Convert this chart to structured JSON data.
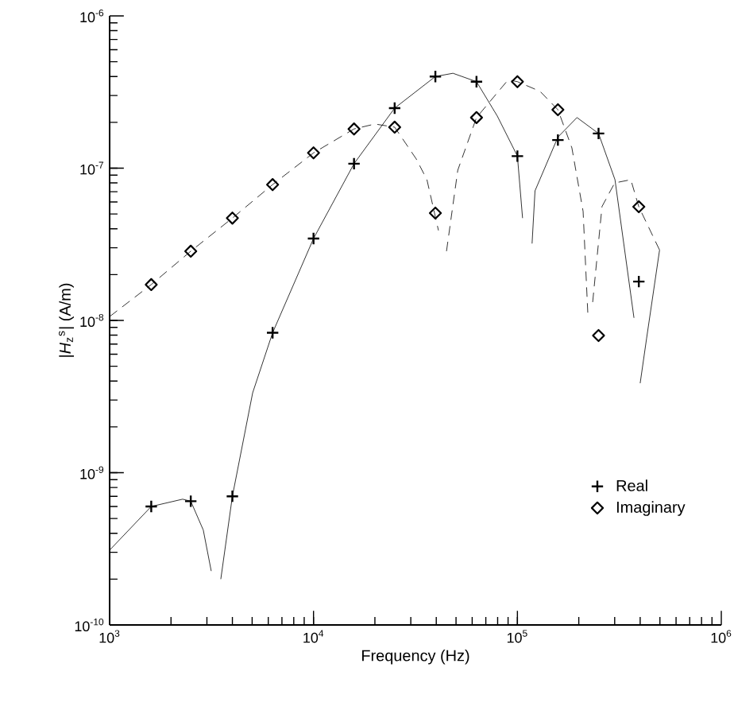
{
  "chart_data": {
    "type": "line",
    "xlabel": "Frequency (Hz)",
    "ylabel": "|*H*$_{z}$$^{s}$| (A/m)",
    "log": "xy",
    "xlim": [
      1000,
      1000000
    ],
    "ylim": [
      1e-10,
      1e-06
    ],
    "xticks": [
      {
        "value": 1000,
        "label": "10$^{3}$"
      },
      {
        "value": 10000,
        "label": "10$^{4}$"
      },
      {
        "value": 100000,
        "label": "10$^{5}$"
      },
      {
        "value": 1000000,
        "label": "10$^{6}$"
      }
    ],
    "yticks": [
      {
        "value": 1e-10,
        "label": "10$^{-10}$"
      },
      {
        "value": 1e-09,
        "label": "10$^{-9}$"
      },
      {
        "value": 1e-08,
        "label": "10$^{-8}$"
      },
      {
        "value": 1e-07,
        "label": "10$^{-7}$"
      },
      {
        "value": 1e-06,
        "label": "10$^{-6}$"
      }
    ],
    "legend": "bottom right",
    "series": [
      {
        "color": "#000000",
        "line_style": "solid",
        "marker": "none",
        "x": [
          1000,
          1600,
          2280,
          2500,
          2880,
          3150,
          3300,
          3510,
          4000,
          5030,
          6300,
          10000,
          15800,
          25000,
          39600,
          48300,
          63000,
          79700,
          100000,
          106000,
          112000,
          118000,
          122000,
          158000,
          196000,
          250000,
          301000,
          373000,
          385000,
          400000,
          430000,
          498000
        ],
        "values": [
          3.1e-10,
          6e-10,
          6.7e-10,
          6.5e-10,
          4.2e-10,
          2.26e-10,
          null,
          2e-10,
          7e-10,
          3.35e-09,
          8.3e-09,
          3.45e-08,
          1.07e-07,
          2.48e-07,
          4e-07,
          4.2e-07,
          3.7e-07,
          2.2e-07,
          1.2e-07,
          4.7e-08,
          null,
          3.2e-08,
          7.1e-08,
          1.6e-07,
          2.15e-07,
          1.69e-07,
          8.4e-08,
          1.04e-08,
          null,
          3.87e-09,
          7.6e-09,
          2.9e-08
        ]
      },
      {
        "color": "#000000",
        "line_style": "dashed",
        "marker": "none",
        "x": [
          1000,
          1600,
          2500,
          4000,
          6300,
          10000,
          15800,
          20000,
          25000,
          31900,
          36000,
          41000,
          43000,
          44900,
          51000,
          63000,
          90000,
          100000,
          129000,
          158000,
          185000,
          210000,
          222000,
          228000,
          234000,
          260000,
          300000,
          360000,
          394000,
          498000
        ],
        "values": [
          1.06e-08,
          1.72e-08,
          2.85e-08,
          4.7e-08,
          7.8e-08,
          1.26e-07,
          1.81e-07,
          1.95e-07,
          1.86e-07,
          1.15e-07,
          8.4e-08,
          3.9e-08,
          null,
          2.85e-08,
          9.7e-08,
          2.15e-07,
          3.8e-07,
          3.7e-07,
          3.2e-07,
          2.42e-07,
          1.36e-07,
          5.2e-08,
          1.04e-08,
          null,
          1.32e-08,
          5.6e-08,
          8e-08,
          8.4e-08,
          5.58e-08,
          2.9e-08
        ]
      },
      {
        "type": "scatter",
        "name": "Real",
        "color": "#000000",
        "marker": "cross",
        "x": [
          1600,
          2500,
          4000,
          6300,
          10000,
          15800,
          25000,
          39600,
          63000,
          100000,
          158000,
          250000,
          394000
        ],
        "values": [
          6e-10,
          6.5e-10,
          7e-10,
          8.3e-09,
          3.45e-08,
          1.07e-07,
          2.48e-07,
          4e-07,
          3.7e-07,
          1.2e-07,
          1.53e-07,
          1.69e-07,
          1.8e-08
        ]
      },
      {
        "type": "scatter",
        "name": "Imaginary",
        "color": "#000000",
        "marker": "diamond",
        "x": [
          1600,
          2500,
          4000,
          6300,
          10000,
          15800,
          25000,
          39600,
          63000,
          100000,
          158000,
          250000,
          394000
        ],
        "values": [
          1.72e-08,
          2.85e-08,
          4.7e-08,
          7.8e-08,
          1.26e-07,
          1.81e-07,
          1.86e-07,
          5.07e-08,
          2.15e-07,
          3.7e-07,
          2.42e-07,
          7.96e-09,
          5.58e-08
        ]
      }
    ]
  }
}
